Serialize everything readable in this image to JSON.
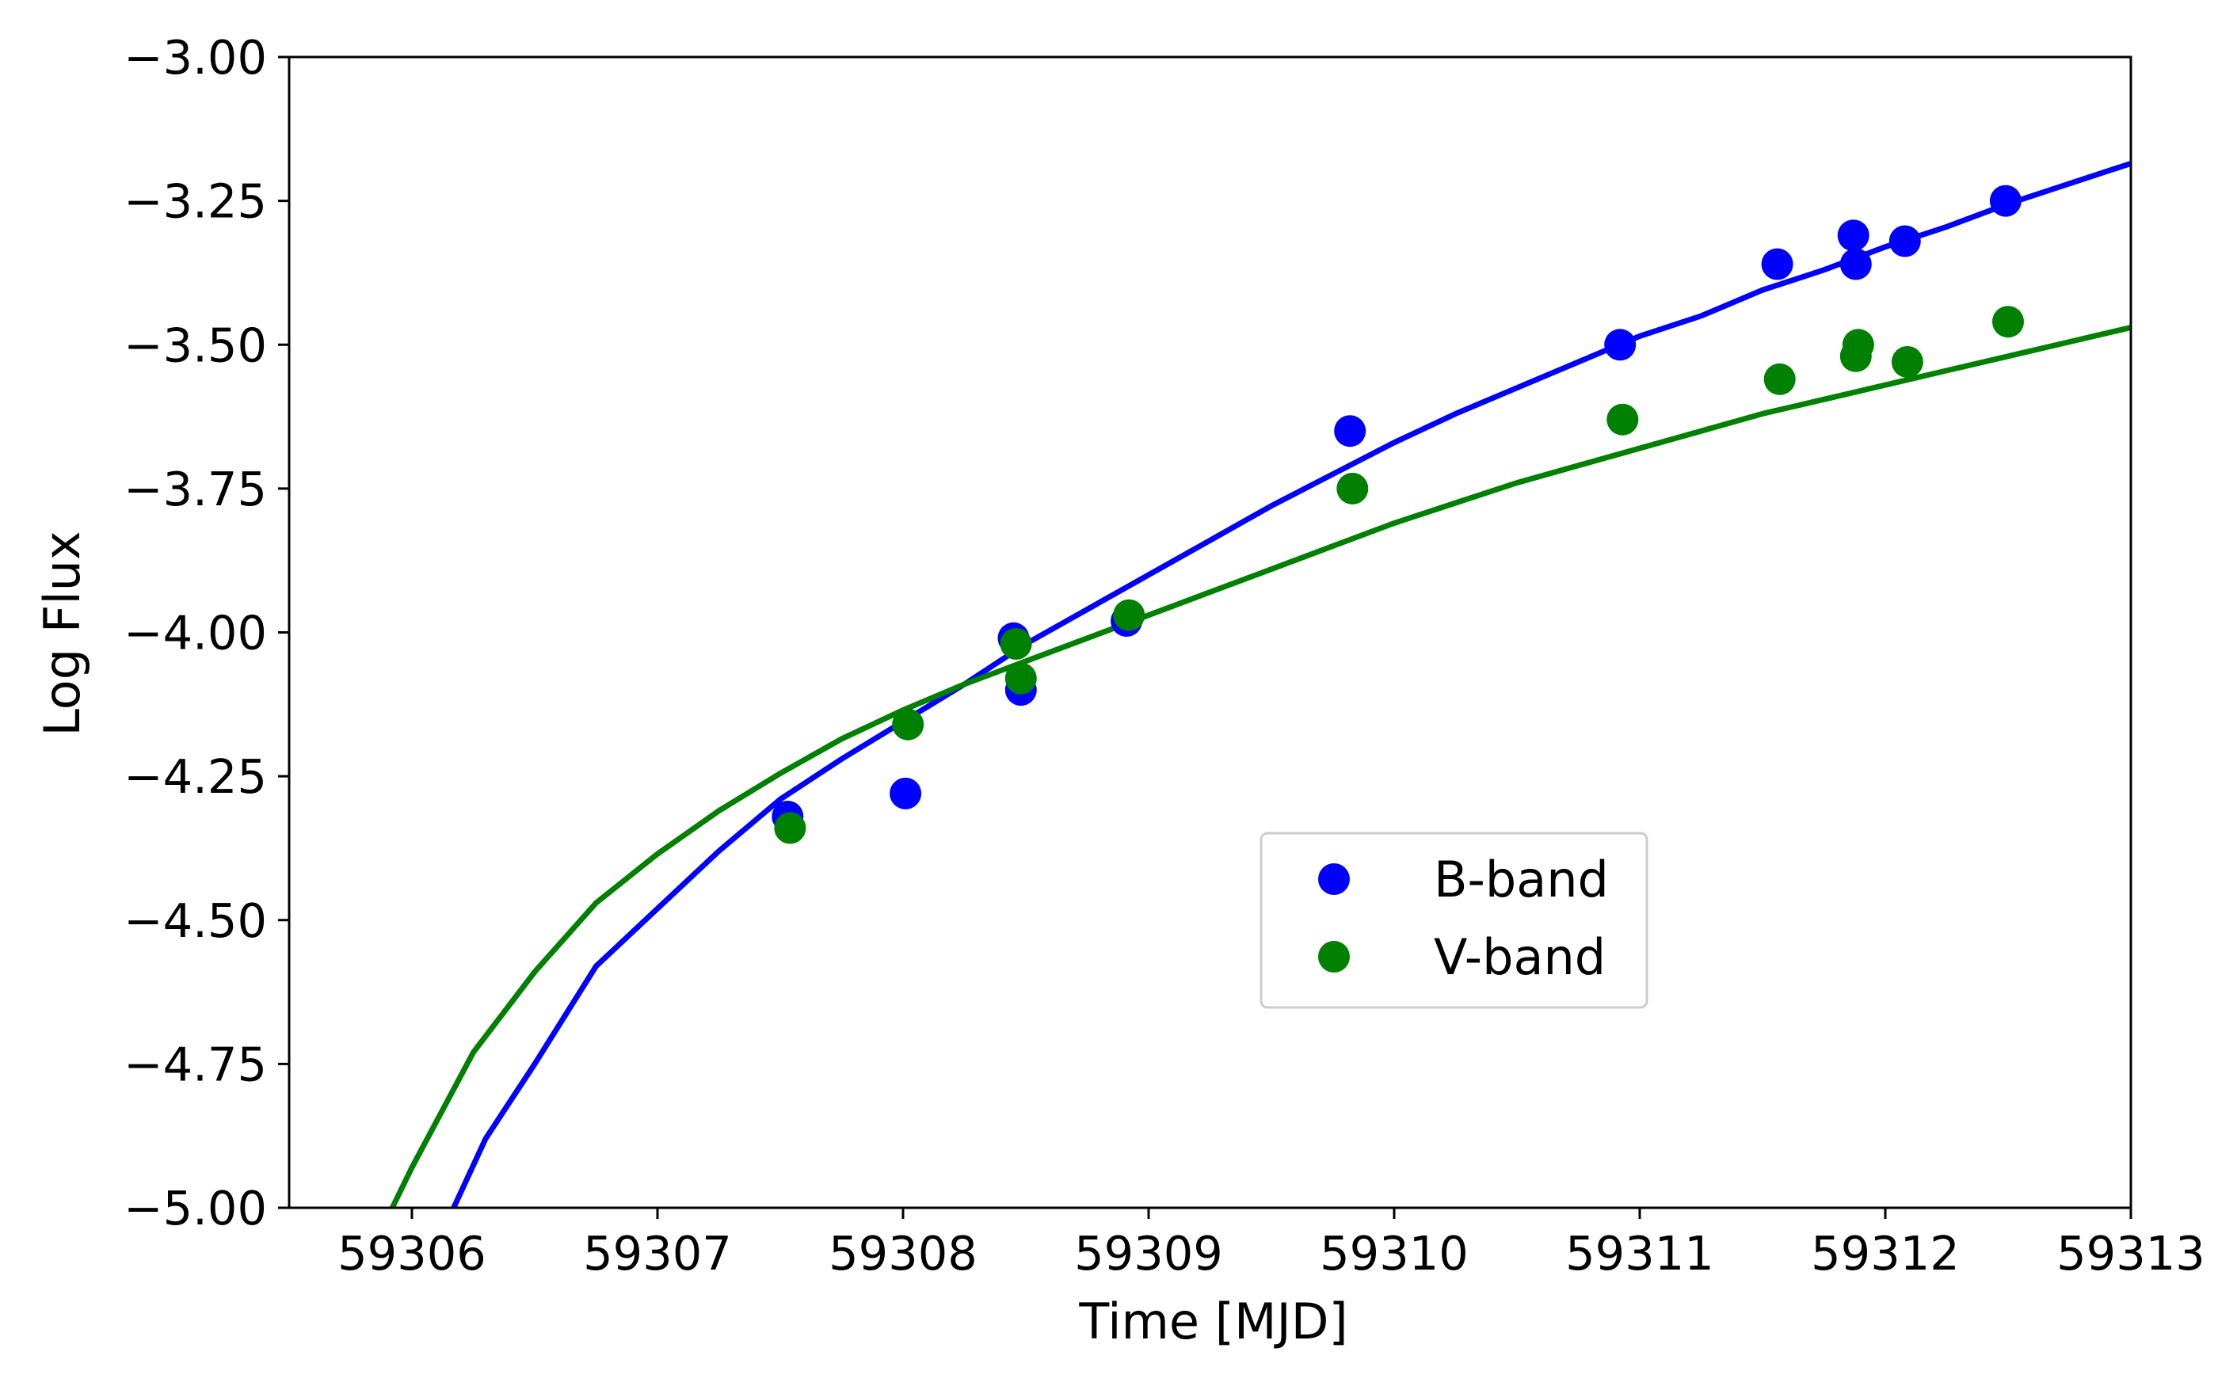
{
  "chart_data": {
    "type": "scatter",
    "xlabel": "Time [MJD]",
    "ylabel": "Log Flux",
    "xlim": [
      59305.5,
      59313
    ],
    "ylim": [
      -5.0,
      -3.0
    ],
    "xticks": [
      59306,
      59307,
      59308,
      59309,
      59310,
      59311,
      59312,
      59313
    ],
    "xtick_labels": [
      "59306",
      "59307",
      "59308",
      "59309",
      "59310",
      "59311",
      "59312",
      "59313"
    ],
    "yticks": [
      -3.0,
      -3.25,
      -3.5,
      -3.75,
      -4.0,
      -4.25,
      -4.5,
      -4.75,
      -5.0
    ],
    "ytick_labels": [
      "−3.00",
      "−3.25",
      "−3.50",
      "−3.75",
      "−4.00",
      "−4.25",
      "−4.50",
      "−4.75",
      "−5.00"
    ],
    "grid": false,
    "legend_position": "center-lower",
    "series": [
      {
        "name": "B-band",
        "color": "#0000ff",
        "marker": "circle",
        "x": [
          59307.53,
          59308.01,
          59308.45,
          59308.48,
          59308.91,
          59309.82,
          59310.92,
          59311.56,
          59311.87,
          59311.88,
          59312.08,
          59312.49
        ],
        "y": [
          -4.32,
          -4.28,
          -4.01,
          -4.1,
          -3.98,
          -3.65,
          -3.5,
          -3.36,
          -3.31,
          -3.36,
          -3.32,
          -3.25
        ],
        "fit_x": [
          59306.17,
          59306.3,
          59306.5,
          59306.75,
          59307.0,
          59307.25,
          59307.5,
          59307.75,
          59308.0,
          59308.25,
          59308.5,
          59308.75,
          59309.0,
          59309.25,
          59309.5,
          59309.75,
          59310.0,
          59310.25,
          59310.5,
          59310.75,
          59311.0,
          59311.25,
          59311.5,
          59311.75,
          59312.0,
          59312.25,
          59312.5,
          59312.75,
          59313.0
        ],
        "fit_y": [
          -5.0,
          -4.88,
          -4.75,
          -4.58,
          -4.48,
          -4.38,
          -4.29,
          -4.22,
          -4.155,
          -4.09,
          -4.02,
          -3.96,
          -3.9,
          -3.84,
          -3.78,
          -3.725,
          -3.67,
          -3.62,
          -3.575,
          -3.53,
          -3.485,
          -3.45,
          -3.405,
          -3.37,
          -3.33,
          -3.295,
          -3.255,
          -3.22,
          -3.185
        ]
      },
      {
        "name": "V-band",
        "color": "#008000",
        "marker": "circle",
        "x": [
          59307.54,
          59308.02,
          59308.46,
          59308.48,
          59308.92,
          59309.83,
          59310.93,
          59311.57,
          59311.88,
          59311.89,
          59312.09,
          59312.5
        ],
        "y": [
          -4.34,
          -4.16,
          -4.02,
          -4.08,
          -3.97,
          -3.75,
          -3.63,
          -3.56,
          -3.52,
          -3.5,
          -3.53,
          -3.46
        ],
        "fit_x": [
          59305.92,
          59306.0,
          59306.25,
          59306.5,
          59306.75,
          59307.0,
          59307.25,
          59307.5,
          59307.75,
          59308.0,
          59308.25,
          59308.5,
          59308.75,
          59309.0,
          59309.25,
          59309.5,
          59309.75,
          59310.0,
          59310.25,
          59310.5,
          59310.75,
          59311.0,
          59311.25,
          59311.5,
          59311.75,
          59312.0,
          59312.25,
          59312.5,
          59312.75,
          59313.0
        ],
        "fit_y": [
          -5.0,
          -4.93,
          -4.73,
          -4.59,
          -4.47,
          -4.385,
          -4.31,
          -4.245,
          -4.185,
          -4.135,
          -4.09,
          -4.05,
          -4.01,
          -3.97,
          -3.93,
          -3.89,
          -3.85,
          -3.81,
          -3.775,
          -3.74,
          -3.71,
          -3.68,
          -3.65,
          -3.62,
          -3.595,
          -3.57,
          -3.545,
          -3.52,
          -3.495,
          -3.47
        ]
      }
    ]
  }
}
